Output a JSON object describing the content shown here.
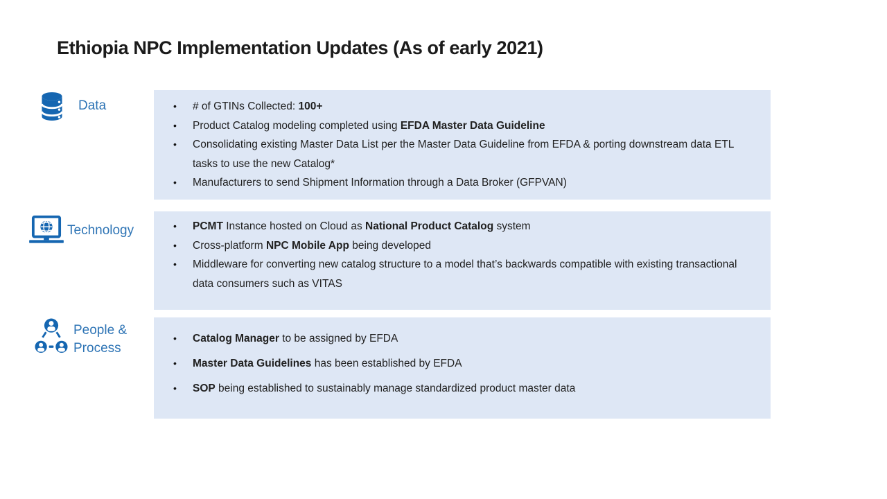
{
  "slide": {
    "title": "Ethiopia NPC Implementation Updates (As of early 2021)"
  },
  "colors": {
    "accent_blue": "#1566B1",
    "label_blue": "#2E74B5",
    "box_fill": "#DEE7F5",
    "body_text": "#212121"
  },
  "sections": [
    {
      "id": "data",
      "icon": "database-icon",
      "label_lines": [
        "Data"
      ],
      "bullets": [
        [
          {
            "t": "# of GTINs Collected: ",
            "b": false
          },
          {
            "t": "100+",
            "b": true
          }
        ],
        [
          {
            "t": "Product Catalog modeling completed using ",
            "b": false
          },
          {
            "t": "EFDA Master Data Guideline",
            "b": true
          }
        ],
        [
          {
            "t": "Consolidating existing Master Data List per the Master Data Guideline from EFDA & porting downstream data ETL tasks to use the new Catalog*",
            "b": false
          }
        ],
        [
          {
            "t": "Manufacturers to send Shipment Information through a Data Broker (GFPVAN)",
            "b": false
          }
        ]
      ]
    },
    {
      "id": "technology",
      "icon": "laptop-globe-icon",
      "label_lines": [
        "Technology"
      ],
      "bullets": [
        [
          {
            "t": "PCMT",
            "b": true
          },
          {
            "t": " Instance hosted on Cloud as ",
            "b": false
          },
          {
            "t": "National Product Catalog",
            "b": true
          },
          {
            "t": " system",
            "b": false
          }
        ],
        [
          {
            "t": "Cross-platform ",
            "b": false
          },
          {
            "t": "NPC Mobile App",
            "b": true
          },
          {
            "t": " being developed",
            "b": false
          }
        ],
        [
          {
            "t": "Middleware for converting new catalog structure to a model that’s backwards compatible with existing transactional data consumers such as VITAS",
            "b": false
          }
        ]
      ]
    },
    {
      "id": "people-process",
      "icon": "people-network-icon",
      "label_lines": [
        "People &",
        "Process"
      ],
      "bullets": [
        [
          {
            "t": "Catalog Manager",
            "b": true
          },
          {
            "t": " to be assigned by EFDA",
            "b": false
          }
        ],
        [
          {
            "t": "Master Data Guidelines",
            "b": true
          },
          {
            "t": " has been established by EFDA",
            "b": false
          }
        ],
        [
          {
            "t": "SOP",
            "b": true
          },
          {
            "t": " being established to sustainably manage standardized product master data",
            "b": false
          }
        ]
      ]
    }
  ]
}
